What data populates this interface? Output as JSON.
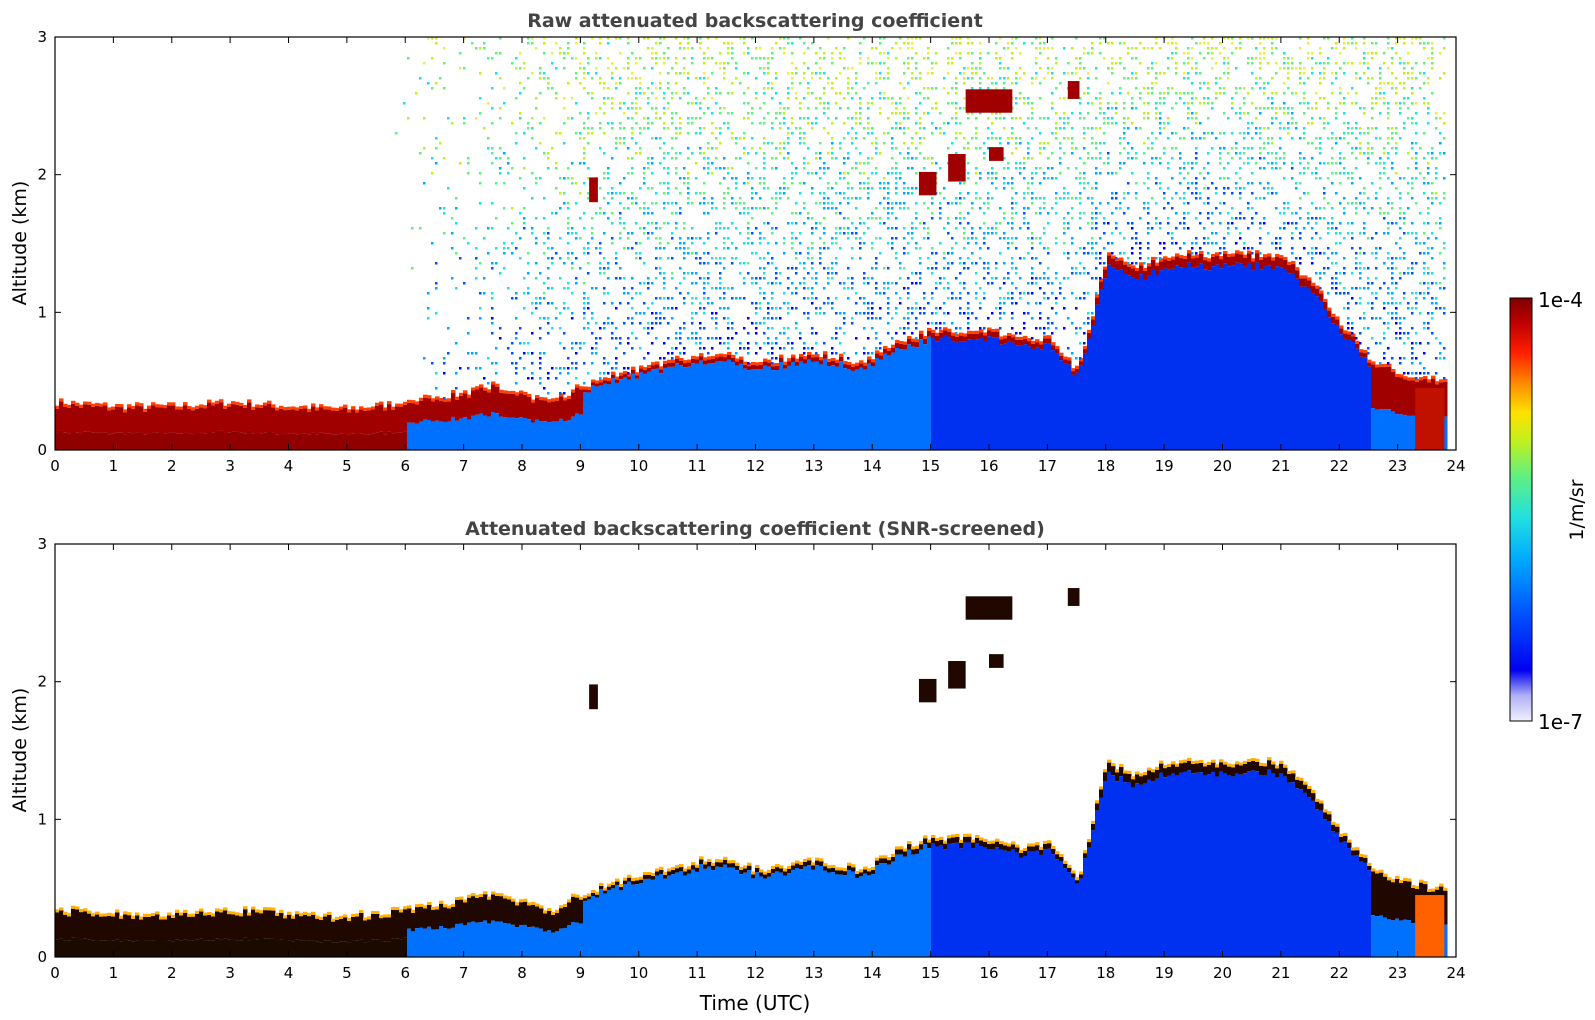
{
  "chart_data": [
    {
      "type": "heatmap",
      "title": "Raw attenuated backscattering coefficient",
      "xlabel": "",
      "ylabel": "Altitude (km)",
      "xlim": [
        0,
        24
      ],
      "ylim": [
        0,
        3
      ],
      "xticks": [
        "0",
        "1",
        "2",
        "3",
        "4",
        "5",
        "6",
        "7",
        "8",
        "9",
        "10",
        "11",
        "12",
        "13",
        "14",
        "15",
        "16",
        "17",
        "18",
        "19",
        "20",
        "21",
        "22",
        "23",
        "24"
      ],
      "yticks": [
        "0",
        "1",
        "2",
        "3"
      ],
      "color_scale": "log",
      "value_range": [
        1e-07,
        0.0001
      ],
      "boundary_layer_top_km": [
        [
          0,
          0.33
        ],
        [
          1,
          0.3
        ],
        [
          2,
          0.3
        ],
        [
          3,
          0.33
        ],
        [
          4,
          0.3
        ],
        [
          5,
          0.28
        ],
        [
          6,
          0.33
        ],
        [
          7,
          0.4
        ],
        [
          7.5,
          0.45
        ],
        [
          8,
          0.38
        ],
        [
          8.5,
          0.33
        ],
        [
          9,
          0.45
        ],
        [
          10,
          0.58
        ],
        [
          10.5,
          0.62
        ],
        [
          11,
          0.68
        ],
        [
          11.5,
          0.68
        ],
        [
          12,
          0.62
        ],
        [
          13,
          0.68
        ],
        [
          13.8,
          0.62
        ],
        [
          14.5,
          0.78
        ],
        [
          15,
          0.85
        ],
        [
          16,
          0.85
        ],
        [
          16.5,
          0.78
        ],
        [
          17,
          0.8
        ],
        [
          17.5,
          0.55
        ],
        [
          18,
          1.4
        ],
        [
          18.5,
          1.3
        ],
        [
          19,
          1.4
        ],
        [
          20,
          1.4
        ],
        [
          21,
          1.4
        ],
        [
          21.5,
          1.2
        ],
        [
          22,
          0.9
        ],
        [
          22.5,
          0.65
        ],
        [
          23,
          0.55
        ],
        [
          23.5,
          0.5
        ],
        [
          23.8,
          0.48
        ]
      ],
      "cloud_layers": [
        {
          "t0": 9.15,
          "t1": 9.3,
          "z0": 1.8,
          "z1": 1.98
        },
        {
          "t0": 14.8,
          "t1": 15.1,
          "z0": 1.85,
          "z1": 2.02
        },
        {
          "t0": 15.3,
          "t1": 15.6,
          "z0": 1.95,
          "z1": 2.15
        },
        {
          "t0": 15.6,
          "t1": 16.4,
          "z0": 2.45,
          "z1": 2.62
        },
        {
          "t0": 16.0,
          "t1": 16.25,
          "z0": 2.1,
          "z1": 2.2
        },
        {
          "t0": 17.35,
          "t1": 17.55,
          "z0": 2.55,
          "z1": 2.68
        }
      ]
    },
    {
      "type": "heatmap",
      "title": "Attenuated backscattering coefficient (SNR-screened)",
      "xlabel": "Time (UTC)",
      "ylabel": "Altitude (km)",
      "xlim": [
        0,
        24
      ],
      "ylim": [
        0,
        3
      ],
      "xticks": [
        "0",
        "1",
        "2",
        "3",
        "4",
        "5",
        "6",
        "7",
        "8",
        "9",
        "10",
        "11",
        "12",
        "13",
        "14",
        "15",
        "16",
        "17",
        "18",
        "19",
        "20",
        "21",
        "22",
        "23",
        "24"
      ],
      "yticks": [
        "0",
        "1",
        "2",
        "3"
      ],
      "color_scale": "log",
      "value_range": [
        1e-07,
        0.0001
      ]
    }
  ],
  "colorbar": {
    "label": "1/m/sr",
    "max_label": "1e-4",
    "min_label": "1e-7",
    "colors": [
      "#eeeefc",
      "#b4b4f8",
      "#0000f0",
      "#0050ff",
      "#00a8ff",
      "#20e0e0",
      "#60f080",
      "#c0f020",
      "#ffe000",
      "#ff8800",
      "#ff2000",
      "#c00000",
      "#800000"
    ]
  }
}
